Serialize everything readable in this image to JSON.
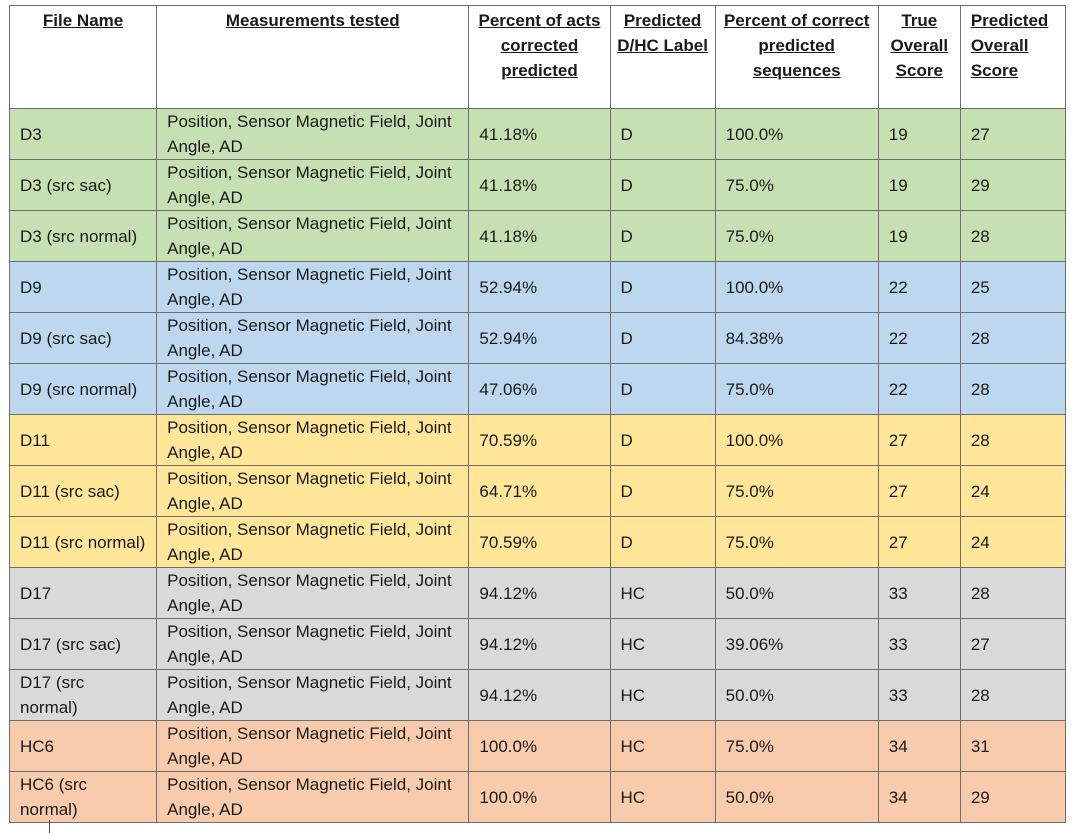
{
  "table": {
    "headers": [
      "File Name",
      "Measurements tested",
      "Percent of acts corrected predicted",
      "Predicted D/HC Label",
      "Percent of correct predicted sequences",
      "True Overall Score",
      "Predicted Overall Score"
    ],
    "rows": [
      {
        "file": "D3",
        "measurements": "Position, Sensor Magnetic Field, Joint Angle, AD",
        "pct_acts": "41.18%",
        "label": "D",
        "pct_seq": "100.0%",
        "true_score": "19",
        "pred_score": "27"
      },
      {
        "file": "D3 (src sac)",
        "measurements": "Position, Sensor Magnetic Field, Joint Angle, AD",
        "pct_acts": "41.18%",
        "label": "D",
        "pct_seq": "75.0%",
        "true_score": "19",
        "pred_score": "29"
      },
      {
        "file": "D3 (src normal)",
        "measurements": "Position, Sensor Magnetic Field, Joint Angle, AD",
        "pct_acts": "41.18%",
        "label": "D",
        "pct_seq": "75.0%",
        "true_score": "19",
        "pred_score": "28"
      },
      {
        "file": "D9",
        "measurements": "Position, Sensor Magnetic Field, Joint Angle, AD",
        "pct_acts": "52.94%",
        "label": "D",
        "pct_seq": "100.0%",
        "true_score": "22",
        "pred_score": "25"
      },
      {
        "file": "D9 (src sac)",
        "measurements": "Position, Sensor Magnetic Field, Joint Angle, AD",
        "pct_acts": "52.94%",
        "label": "D",
        "pct_seq": "84.38%",
        "true_score": "22",
        "pred_score": "28"
      },
      {
        "file": "D9 (src normal)",
        "measurements": "Position, Sensor Magnetic Field, Joint Angle, AD",
        "pct_acts": "47.06%",
        "label": "D",
        "pct_seq": "75.0%",
        "true_score": "22",
        "pred_score": "28"
      },
      {
        "file": "D11",
        "measurements": "Position, Sensor Magnetic Field, Joint Angle, AD",
        "pct_acts": "70.59%",
        "label": "D",
        "pct_seq": "100.0%",
        "true_score": "27",
        "pred_score": "28"
      },
      {
        "file": "D11 (src sac)",
        "measurements": "Position, Sensor Magnetic Field, Joint Angle, AD",
        "pct_acts": "64.71%",
        "label": "D",
        "pct_seq": "75.0%",
        "true_score": "27",
        "pred_score": "24"
      },
      {
        "file": "D11 (src normal)",
        "measurements": "Position, Sensor Magnetic Field, Joint Angle, AD",
        "pct_acts": "70.59%",
        "label": "D",
        "pct_seq": "75.0%",
        "true_score": "27",
        "pred_score": "24"
      },
      {
        "file": "D17",
        "measurements": "Position, Sensor Magnetic Field, Joint Angle, AD",
        "pct_acts": "94.12%",
        "label": "HC",
        "pct_seq": "50.0%",
        "true_score": "33",
        "pred_score": "28"
      },
      {
        "file": "D17 (src sac)",
        "measurements": "Position, Sensor Magnetic Field, Joint Angle, AD",
        "pct_acts": "94.12%",
        "label": "HC",
        "pct_seq": "39.06%",
        "true_score": "33",
        "pred_score": "27"
      },
      {
        "file": "D17 (src normal)",
        "measurements": "Position, Sensor Magnetic Field, Joint Angle, AD",
        "pct_acts": "94.12%",
        "label": "HC",
        "pct_seq": "50.0%",
        "true_score": "33",
        "pred_score": "28"
      },
      {
        "file": "HC6",
        "measurements": "Position, Sensor Magnetic Field, Joint Angle, AD",
        "pct_acts": "100.0%",
        "label": "HC",
        "pct_seq": "75.0%",
        "true_score": "34",
        "pred_score": "31"
      },
      {
        "file": "HC6 (src normal)",
        "measurements": "Position, Sensor Magnetic Field, Joint Angle, AD",
        "pct_acts": "100.0%",
        "label": "HC",
        "pct_seq": "50.0%",
        "true_score": "34",
        "pred_score": "29"
      }
    ]
  },
  "row_colors": {
    "D3": "#c6e0b4",
    "D9": "#bdd7ee",
    "D11": "#ffe699",
    "D17": "#d9d9d9",
    "HC6": "#f8cbad"
  }
}
